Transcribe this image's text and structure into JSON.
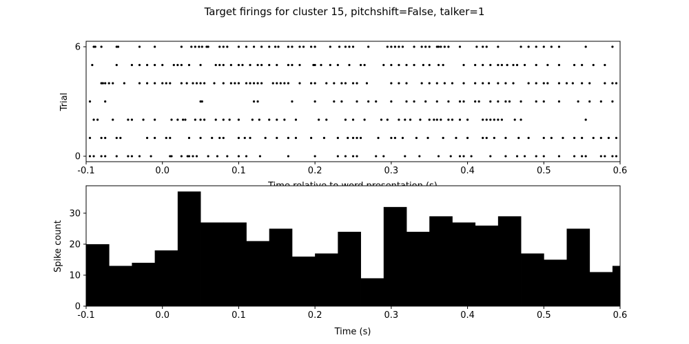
{
  "suptitle": "Target firings for cluster 15, pitchshift=False, talker=1",
  "chart_data": [
    {
      "type": "scatter",
      "name": "raster",
      "xlabel": "Time relative to word presentation (s)",
      "ylabel": "Trial",
      "xlim": [
        -0.1,
        0.6
      ],
      "ylim": [
        -0.3,
        6.3
      ],
      "xticks": [
        "-0.1",
        "0.0",
        "0.1",
        "0.2",
        "0.3",
        "0.4",
        "0.5",
        "0.6"
      ],
      "yticks": [
        "0",
        "6"
      ],
      "marker_color": "#000000",
      "rows": [
        {
          "trial": 0,
          "times": [
            -0.095,
            -0.09,
            -0.08,
            -0.075,
            -0.06,
            -0.045,
            -0.04,
            -0.03,
            -0.015,
            0.01,
            0.012,
            0.025,
            0.033,
            0.035,
            0.04,
            0.045,
            0.06,
            0.072,
            0.085,
            0.1,
            0.11,
            0.128,
            0.165,
            0.2,
            0.23,
            0.24,
            0.25,
            0.255,
            0.28,
            0.29,
            0.318,
            0.337,
            0.362,
            0.378,
            0.39,
            0.395,
            0.405,
            0.43,
            0.45,
            0.465,
            0.475,
            0.49,
            0.5,
            0.52,
            0.54,
            0.55,
            0.555,
            0.575,
            0.58,
            0.59,
            0.595
          ]
        },
        {
          "trial": 1,
          "times": [
            -0.095,
            -0.08,
            -0.075,
            -0.06,
            -0.055,
            -0.02,
            -0.01,
            0.005,
            0.01,
            0.035,
            0.05,
            0.065,
            0.075,
            0.08,
            0.1,
            0.108,
            0.115,
            0.135,
            0.15,
            0.165,
            0.175,
            0.195,
            0.212,
            0.23,
            0.243,
            0.25,
            0.255,
            0.26,
            0.283,
            0.3,
            0.305,
            0.315,
            0.333,
            0.348,
            0.368,
            0.385,
            0.4,
            0.42,
            0.425,
            0.435,
            0.45,
            0.467,
            0.48,
            0.5,
            0.51,
            0.525,
            0.54,
            0.55,
            0.565,
            0.575,
            0.585,
            0.595
          ]
        },
        {
          "trial": 2,
          "times": [
            -0.09,
            -0.085,
            -0.065,
            -0.045,
            -0.04,
            -0.025,
            -0.01,
            0.012,
            0.02,
            0.027,
            0.03,
            0.043,
            0.05,
            0.055,
            0.07,
            0.08,
            0.088,
            0.1,
            0.118,
            0.127,
            0.14,
            0.15,
            0.16,
            0.175,
            0.205,
            0.215,
            0.24,
            0.25,
            0.265,
            0.287,
            0.295,
            0.31,
            0.318,
            0.325,
            0.338,
            0.35,
            0.356,
            0.36,
            0.365,
            0.375,
            0.38,
            0.39,
            0.4,
            0.42,
            0.425,
            0.43,
            0.435,
            0.44,
            0.445,
            0.462,
            0.47,
            0.555
          ]
        },
        {
          "trial": 3,
          "times": [
            -0.095,
            -0.075,
            0.05,
            0.052,
            0.12,
            0.125,
            0.17,
            0.2,
            0.225,
            0.235,
            0.255,
            0.27,
            0.28,
            0.3,
            0.32,
            0.33,
            0.345,
            0.36,
            0.375,
            0.39,
            0.395,
            0.41,
            0.415,
            0.43,
            0.44,
            0.45,
            0.455,
            0.47,
            0.49,
            0.5,
            0.52,
            0.545,
            0.56,
            0.575,
            0.59
          ]
        },
        {
          "trial": 4,
          "times": [
            -0.08,
            -0.078,
            -0.075,
            -0.07,
            -0.065,
            -0.05,
            -0.03,
            -0.02,
            -0.01,
            0.0,
            0.005,
            0.01,
            0.025,
            0.032,
            0.04,
            0.045,
            0.05,
            0.055,
            0.068,
            0.08,
            0.09,
            0.095,
            0.1,
            0.11,
            0.115,
            0.12,
            0.125,
            0.13,
            0.145,
            0.15,
            0.155,
            0.16,
            0.165,
            0.18,
            0.195,
            0.2,
            0.215,
            0.225,
            0.235,
            0.24,
            0.25,
            0.255,
            0.268,
            0.3,
            0.31,
            0.32,
            0.34,
            0.35,
            0.36,
            0.37,
            0.38,
            0.395,
            0.41,
            0.42,
            0.428,
            0.44,
            0.45,
            0.46,
            0.48,
            0.49,
            0.5,
            0.505,
            0.52,
            0.53,
            0.538,
            0.55,
            0.56,
            0.58,
            0.59,
            0.595
          ]
        },
        {
          "trial": 5,
          "times": [
            -0.092,
            -0.06,
            -0.04,
            -0.03,
            -0.02,
            -0.01,
            0.0,
            0.015,
            0.02,
            0.025,
            0.035,
            0.05,
            0.07,
            0.075,
            0.08,
            0.09,
            0.1,
            0.105,
            0.115,
            0.125,
            0.13,
            0.14,
            0.15,
            0.165,
            0.17,
            0.18,
            0.198,
            0.2,
            0.208,
            0.22,
            0.23,
            0.245,
            0.26,
            0.265,
            0.29,
            0.3,
            0.31,
            0.32,
            0.33,
            0.342,
            0.35,
            0.362,
            0.368,
            0.395,
            0.41,
            0.42,
            0.43,
            0.44,
            0.445,
            0.452,
            0.46,
            0.465,
            0.475,
            0.49,
            0.505,
            0.52,
            0.54,
            0.55,
            0.565,
            0.58
          ]
        },
        {
          "trial": 6,
          "times": [
            -0.09,
            -0.088,
            -0.08,
            -0.06,
            -0.058,
            -0.03,
            -0.01,
            0.025,
            0.038,
            0.043,
            0.048,
            0.052,
            0.058,
            0.06,
            0.075,
            0.08,
            0.085,
            0.1,
            0.11,
            0.12,
            0.13,
            0.14,
            0.148,
            0.152,
            0.165,
            0.17,
            0.18,
            0.185,
            0.195,
            0.2,
            0.22,
            0.232,
            0.24,
            0.245,
            0.25,
            0.27,
            0.295,
            0.3,
            0.305,
            0.31,
            0.315,
            0.33,
            0.34,
            0.345,
            0.35,
            0.36,
            0.362,
            0.365,
            0.37,
            0.375,
            0.39,
            0.412,
            0.42,
            0.425,
            0.44,
            0.47,
            0.48,
            0.49,
            0.5,
            0.51,
            0.52,
            0.555,
            0.59
          ]
        }
      ]
    },
    {
      "type": "bar",
      "name": "histogram",
      "xlabel": "Time (s)",
      "ylabel": "Spike count",
      "xlim": [
        -0.1,
        0.6
      ],
      "ylim": [
        0,
        38.85
      ],
      "xticks": [
        "-0.1",
        "0.0",
        "0.1",
        "0.2",
        "0.3",
        "0.4",
        "0.5",
        "0.6"
      ],
      "yticks": [
        "0",
        "10",
        "20",
        "30"
      ],
      "bar_color": "#000000",
      "bin_edges": [
        -0.1,
        -0.07,
        -0.04,
        -0.01,
        0.02,
        0.05,
        0.08,
        0.11,
        0.14,
        0.17,
        0.2,
        0.23,
        0.26,
        0.29,
        0.32,
        0.35,
        0.38,
        0.41,
        0.44,
        0.47,
        0.5,
        0.53,
        0.56,
        0.59,
        0.62
      ],
      "values": [
        20,
        13,
        14,
        18,
        37,
        27,
        27,
        21,
        25,
        16,
        17,
        24,
        9,
        32,
        24,
        29,
        27,
        26,
        29,
        17,
        15,
        25,
        11,
        13
      ]
    }
  ]
}
